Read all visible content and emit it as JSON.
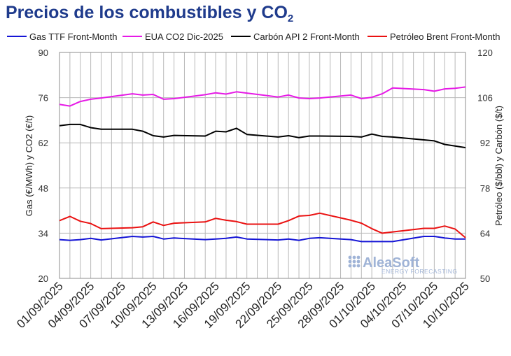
{
  "chart_data": {
    "type": "line",
    "title_main": "Precios de los combustibles y CO",
    "title_sub": "2",
    "ylabel_left": "Gas (€/MWh) y CO2 (€/t)",
    "ylabel_right": "Petróleo ($/bbl) y Carbón ($/t)",
    "ylim_left": [
      20,
      90
    ],
    "ylim_right": [
      50,
      120
    ],
    "yticks_left": [
      "20",
      "34",
      "48",
      "62",
      "76",
      "90"
    ],
    "yticks_right": [
      "50",
      "64",
      "78",
      "92",
      "106",
      "120"
    ],
    "grid": true,
    "legend_position": "top",
    "x_labels": [
      "01/09/2025",
      "04/09/2025",
      "07/09/2025",
      "10/09/2025",
      "13/09/2025",
      "16/09/2025",
      "19/09/2025",
      "22/09/2025",
      "25/09/2025",
      "28/09/2025",
      "01/10/2025",
      "04/10/2025",
      "07/10/2025",
      "10/10/2025"
    ],
    "x": [
      "01/09/2025",
      "02/09/2025",
      "03/09/2025",
      "04/09/2025",
      "05/09/2025",
      "08/09/2025",
      "09/09/2025",
      "10/09/2025",
      "11/09/2025",
      "12/09/2025",
      "15/09/2025",
      "16/09/2025",
      "17/09/2025",
      "18/09/2025",
      "19/09/2025",
      "22/09/2025",
      "23/09/2025",
      "24/09/2025",
      "25/09/2025",
      "26/09/2025",
      "29/09/2025",
      "30/09/2025",
      "01/10/2025",
      "02/10/2025",
      "03/10/2025",
      "06/10/2025",
      "07/10/2025",
      "08/10/2025",
      "09/10/2025",
      "10/10/2025"
    ],
    "series": [
      {
        "name": "Gas TTF Front-Month",
        "axis": "left",
        "color": "#1515d6",
        "values": [
          32.0,
          31.8,
          32.0,
          32.4,
          31.9,
          33.0,
          32.8,
          33.0,
          32.2,
          32.5,
          32.0,
          32.2,
          32.4,
          32.8,
          32.2,
          31.9,
          32.2,
          31.8,
          32.4,
          32.6,
          32.0,
          31.4,
          31.4,
          31.4,
          31.4,
          33.0,
          33.0,
          32.5,
          32.2,
          32.2
        ]
      },
      {
        "name": "EUA CO2 Dic-2025",
        "axis": "left",
        "color": "#e61ae6",
        "values": [
          73.9,
          73.4,
          74.8,
          75.5,
          75.9,
          77.2,
          76.8,
          77.0,
          75.5,
          75.7,
          76.9,
          77.5,
          77.1,
          77.8,
          77.4,
          76.2,
          76.8,
          75.9,
          75.7,
          75.9,
          76.8,
          75.7,
          76.1,
          77.2,
          79.0,
          78.5,
          78.0,
          78.7,
          78.9,
          79.3
        ]
      },
      {
        "name": "Carbón API 2 Front-Month",
        "axis": "right",
        "color": "#000000",
        "values": [
          97.3,
          97.7,
          97.7,
          96.7,
          96.2,
          96.2,
          95.6,
          94.2,
          93.8,
          94.3,
          94.1,
          95.6,
          95.4,
          96.5,
          94.6,
          93.8,
          94.2,
          93.6,
          94.1,
          94.1,
          94.0,
          93.8,
          94.7,
          94.0,
          93.8,
          92.9,
          92.6,
          91.5,
          91.0,
          90.5
        ]
      },
      {
        "name": "Petróleo Brent Front-Month",
        "axis": "right",
        "color": "#ea1111",
        "values": [
          67.9,
          69.2,
          67.7,
          67.0,
          65.4,
          65.7,
          66.0,
          67.5,
          66.4,
          67.1,
          67.5,
          68.6,
          68.0,
          67.6,
          66.8,
          66.8,
          67.9,
          69.3,
          69.5,
          70.2,
          68.0,
          67.1,
          65.4,
          64.0,
          64.4,
          65.5,
          65.5,
          66.2,
          65.3,
          62.6
        ]
      }
    ]
  },
  "watermark": {
    "brand": "AleaSoft",
    "tagline": "ENERGY FORECASTING"
  }
}
